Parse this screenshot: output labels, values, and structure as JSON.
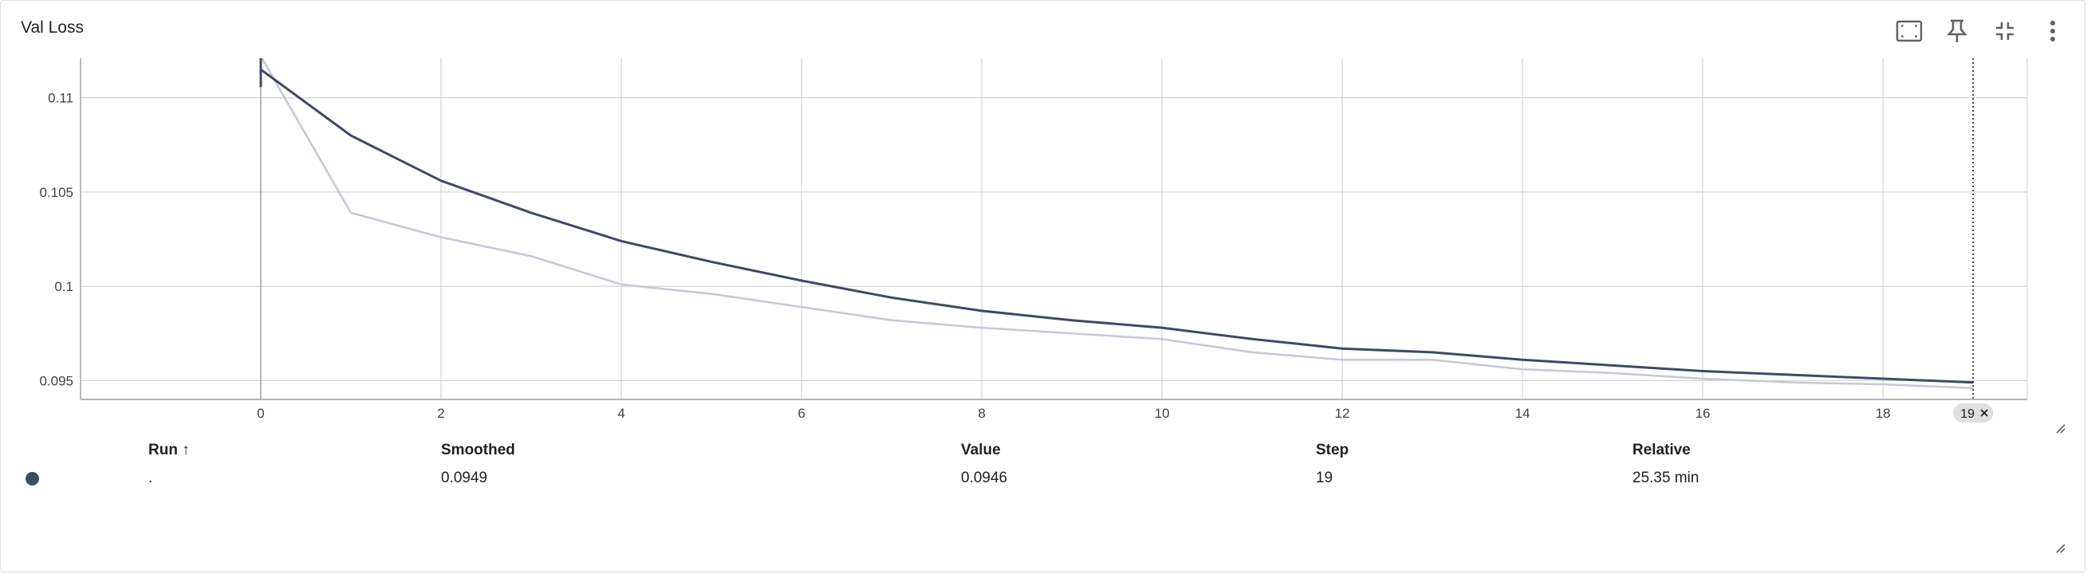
{
  "card": {
    "title": "Val Loss"
  },
  "toolbar": {
    "icons": [
      "fit-domain-icon",
      "pin-icon",
      "collapse-icon",
      "more-vert-icon"
    ]
  },
  "colors": {
    "smoothed_line": "#3f4a63",
    "raw_line": "#c8c8d6",
    "grid": "#d6d6d6",
    "run_dot": "#3f4a63"
  },
  "chart_data": {
    "type": "line",
    "title": "Val Loss",
    "xlabel": "",
    "ylabel": "",
    "xlim": [
      -2,
      19.6
    ],
    "ylim": [
      0.094,
      0.1121
    ],
    "x_ticks": [
      0,
      2,
      4,
      6,
      8,
      10,
      12,
      14,
      16,
      18
    ],
    "y_ticks": [
      0.095,
      0.1,
      0.105,
      0.11
    ],
    "y_tick_labels": [
      "0.095",
      "0.1",
      "0.105",
      "0.11"
    ],
    "grid": true,
    "legend": "none",
    "series": [
      {
        "role": "raw",
        "x": [
          0,
          1,
          2,
          3,
          4,
          5,
          6,
          7,
          8,
          9,
          10,
          11,
          12,
          13,
          14,
          15,
          16,
          17,
          18,
          19
        ],
        "values": [
          0.1122,
          0.1039,
          0.1026,
          0.1016,
          0.1001,
          0.0996,
          0.0989,
          0.0982,
          0.0978,
          0.0975,
          0.0972,
          0.0965,
          0.0961,
          0.0961,
          0.0956,
          0.0954,
          0.0951,
          0.0949,
          0.0948,
          0.0946
        ]
      },
      {
        "role": "smoothed",
        "x": [
          0,
          1,
          2,
          3,
          4,
          5,
          6,
          7,
          8,
          9,
          10,
          11,
          12,
          13,
          14,
          15,
          16,
          17,
          18,
          19
        ],
        "values": [
          0.1115,
          0.108,
          0.1056,
          0.1039,
          0.1024,
          0.1013,
          0.1003,
          0.0994,
          0.0987,
          0.0982,
          0.0978,
          0.0972,
          0.0967,
          0.0965,
          0.0961,
          0.0958,
          0.0955,
          0.0953,
          0.0951,
          0.0949
        ]
      }
    ],
    "hover_step": 19,
    "hover_step_label": "19"
  },
  "table": {
    "headers": {
      "run": "Run ↑",
      "smoothed": "Smoothed",
      "value": "Value",
      "step": "Step",
      "relative": "Relative"
    },
    "rows": [
      {
        "run": ".",
        "smoothed": "0.0949",
        "value": "0.0946",
        "step": "19",
        "relative": "25.35 min"
      }
    ]
  }
}
